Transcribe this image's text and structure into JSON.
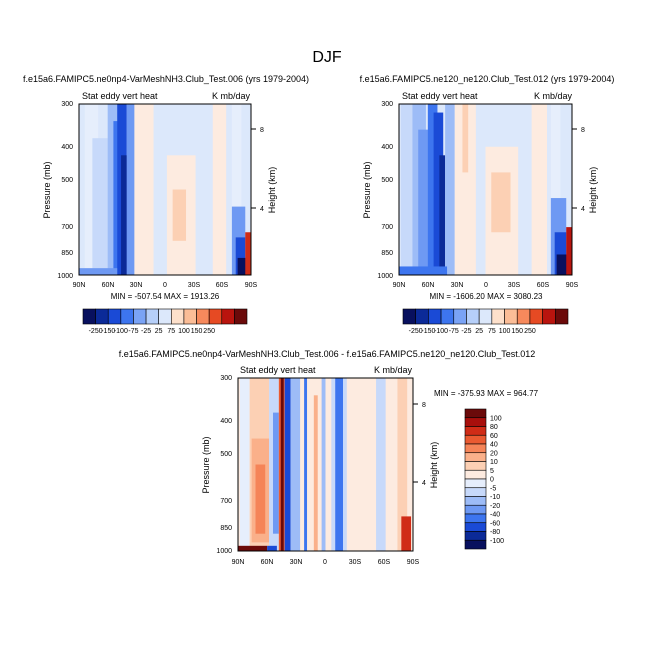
{
  "figure_title": "DJF",
  "chart_data": [
    {
      "type": "heatmap",
      "title": "f.e15a6.FAMIPC5.ne0np4-VarMeshNH3.Club_Test.006 (yrs 1979-2004)",
      "left_label": "Stat eddy vert heat",
      "right_label": "K mb/day",
      "ylabel": "Pressure (mb)",
      "ylabel_right": "Height (km)",
      "xticks": [
        "90N",
        "60N",
        "30N",
        "0",
        "30S",
        "60S",
        "90S"
      ],
      "yticks": [
        "300",
        "400",
        "500",
        "700",
        "850",
        "1000"
      ],
      "yticks_right": [
        "8",
        "4"
      ],
      "ylim": [
        1000,
        300
      ],
      "xlim": [
        90,
        -90
      ],
      "min_max": "MIN = -507.54   MAX = 1913.26",
      "palette": "blue-white-red diverging",
      "colorbar_labels": [
        "-250",
        "-150",
        "-100",
        "-75",
        "-25",
        "25",
        "75",
        "100",
        "150",
        "250"
      ]
    },
    {
      "type": "heatmap",
      "title": "f.e15a6.FAMIPC5.ne120_ne120.Club_Test.012 (yrs 1979-2004)",
      "left_label": "Stat eddy vert heat",
      "right_label": "K mb/day",
      "ylabel": "Pressure (mb)",
      "ylabel_right": "Height (km)",
      "xticks": [
        "90N",
        "60N",
        "30N",
        "0",
        "30S",
        "60S",
        "90S"
      ],
      "yticks": [
        "300",
        "400",
        "500",
        "700",
        "850",
        "1000"
      ],
      "yticks_right": [
        "8",
        "4"
      ],
      "ylim": [
        1000,
        300
      ],
      "xlim": [
        90,
        -90
      ],
      "min_max": "MIN = -1606.20   MAX = 3080.23",
      "palette": "blue-white-red diverging",
      "colorbar_labels": [
        "-250",
        "-150",
        "-100",
        "-75",
        "-25",
        "25",
        "75",
        "100",
        "150",
        "250"
      ]
    },
    {
      "type": "heatmap",
      "title": "f.e15a6.FAMIPC5.ne0np4-VarMeshNH3.Club_Test.006 - f.e15a6.FAMIPC5.ne120_ne120.Club_Test.012",
      "left_label": "Stat eddy vert heat",
      "right_label": "K mb/day",
      "ylabel": "Pressure (mb)",
      "ylabel_right": "Height (km)",
      "xticks": [
        "90N",
        "60N",
        "30N",
        "0",
        "30S",
        "60S",
        "90S"
      ],
      "yticks": [
        "300",
        "400",
        "500",
        "700",
        "850",
        "1000"
      ],
      "yticks_right": [
        "8",
        "4"
      ],
      "ylim": [
        1000,
        300
      ],
      "xlim": [
        90,
        -90
      ],
      "min_max": "MIN = -375.93  MAX = 964.77",
      "palette": "blue-white-red diverging",
      "colorbar_labels": [
        "100",
        "80",
        "60",
        "40",
        "20",
        "10",
        "5",
        "0",
        "-5",
        "-10",
        "-20",
        "-40",
        "-60",
        "-80",
        "-100"
      ]
    }
  ],
  "colors": {
    "palette12": [
      "#08105e",
      "#0b2a98",
      "#1a4ad6",
      "#3d75ef",
      "#7aa3f5",
      "#b6cff9",
      "#dce8fb",
      "#fde0cb",
      "#fbbd97",
      "#f6895c",
      "#e64a23",
      "#b9140e",
      "#6b0a0a"
    ],
    "palette16": [
      "#08105e",
      "#0b2a98",
      "#1a4ad6",
      "#3d75ef",
      "#6e99f3",
      "#9dbcf7",
      "#c7d9fa",
      "#e6eefc",
      "#fdebe0",
      "#fcd0b4",
      "#fab08a",
      "#f58458",
      "#ea5a31",
      "#d02c17",
      "#a80f0c",
      "#6b0a0a"
    ]
  }
}
